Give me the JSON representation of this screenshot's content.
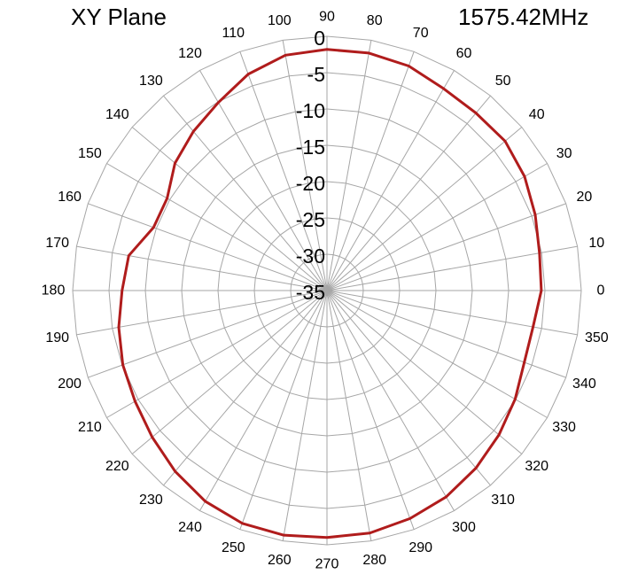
{
  "chart_data": {
    "type": "polar-line",
    "title": "XY Plane",
    "frequency": "1575.42MHz",
    "angle_unit": "degrees",
    "angular_ticks": [
      0,
      10,
      20,
      30,
      40,
      50,
      60,
      70,
      80,
      90,
      100,
      110,
      120,
      130,
      140,
      150,
      160,
      170,
      180,
      190,
      200,
      210,
      220,
      230,
      240,
      250,
      260,
      270,
      280,
      290,
      300,
      310,
      320,
      330,
      340,
      350
    ],
    "radial_ticks": [
      "0",
      "-5",
      "-10",
      "-15",
      "-20",
      "-25",
      "-30",
      "-35"
    ],
    "radial_range": [
      -35,
      0
    ],
    "grid": true,
    "series": [
      {
        "color": "#b01c1c",
        "angles": [
          0,
          10,
          20,
          30,
          40,
          50,
          60,
          70,
          80,
          90,
          100,
          110,
          120,
          130,
          140,
          150,
          160,
          170,
          180,
          190,
          200,
          210,
          220,
          230,
          240,
          250,
          260,
          270,
          280,
          290,
          300,
          310,
          320,
          330,
          340,
          350
        ],
        "values": [
          -5.5,
          -5.3,
          -4.5,
          -3.6,
          -3.0,
          -3.1,
          -2.9,
          -2.1,
          -1.8,
          -1.8,
          -2.1,
          -3.3,
          -5.1,
          -6.4,
          -7.7,
          -9.6,
          -9.6,
          -7.3,
          -6.8,
          -5.9,
          -5.1,
          -4.5,
          -3.6,
          -2.5,
          -1.5,
          -0.9,
          -0.8,
          -1.0,
          -1.1,
          -1.6,
          -2.2,
          -3.1,
          -4.1,
          -5.1,
          -6.1,
          -6.2
        ]
      }
    ]
  }
}
